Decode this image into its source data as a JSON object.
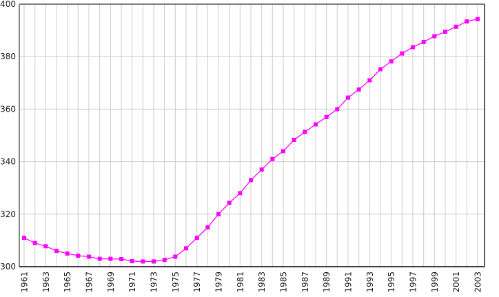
{
  "chart_data": {
    "type": "line",
    "title": "",
    "xlabel": "",
    "ylabel": "",
    "x": [
      1961,
      1962,
      1963,
      1964,
      1965,
      1966,
      1967,
      1968,
      1969,
      1970,
      1971,
      1972,
      1973,
      1974,
      1975,
      1976,
      1977,
      1978,
      1979,
      1980,
      1981,
      1982,
      1983,
      1984,
      1985,
      1986,
      1987,
      1988,
      1989,
      1990,
      1991,
      1992,
      1993,
      1994,
      1995,
      1996,
      1997,
      1998,
      1999,
      2000,
      2001,
      2002,
      2003
    ],
    "series": [
      {
        "name": "value",
        "marker": "square",
        "color": "#ff00ff",
        "values": [
          311.0,
          309.0,
          307.8,
          306.0,
          305.0,
          304.2,
          303.8,
          303.0,
          303.0,
          302.9,
          302.1,
          302.0,
          302.0,
          302.6,
          303.8,
          307.0,
          311.0,
          315.0,
          320.0,
          324.3,
          328.0,
          333.0,
          337.0,
          341.0,
          344.0,
          348.3,
          351.3,
          354.2,
          357.0,
          360.0,
          364.4,
          367.5,
          371.0,
          375.2,
          378.2,
          381.2,
          383.6,
          385.6,
          387.8,
          389.5,
          391.4,
          393.4,
          394.3
        ]
      }
    ],
    "ylim": [
      300,
      400
    ],
    "y_ticks": [
      300,
      320,
      340,
      360,
      380,
      400
    ],
    "y_tick_labels": [
      "300",
      "320",
      "340",
      "360",
      "380",
      "400"
    ],
    "x_tick_years": [
      1961,
      1963,
      1965,
      1967,
      1969,
      1971,
      1973,
      1975,
      1977,
      1979,
      1981,
      1983,
      1985,
      1987,
      1989,
      1991,
      1993,
      1995,
      1997,
      1999,
      2001,
      2003
    ],
    "grid": true,
    "legend_position": "none",
    "x_label_rotation_degrees": -90
  },
  "colors": {
    "series": "#ff00ff",
    "grid": "#cccccc",
    "frame_top": "#555555",
    "frame_left": "#888888",
    "frame_bottom": "#000000",
    "frame_right": "#222222",
    "label_text": "#1a1a1a",
    "background": "#ffffff"
  }
}
